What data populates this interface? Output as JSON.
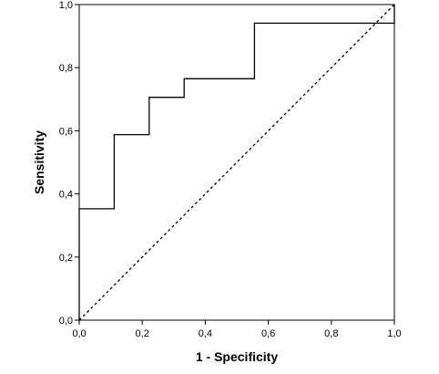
{
  "chart_data": {
    "type": "line",
    "title": "",
    "xlabel": "1 - Specificity",
    "ylabel": "Sensitivity",
    "xlim": [
      0,
      1
    ],
    "ylim": [
      0,
      1
    ],
    "x_ticks": [
      "0,0",
      "0,2",
      "0,4",
      "0,6",
      "0,8",
      "1,0"
    ],
    "y_ticks": [
      "0,0",
      "0,2",
      "0,4",
      "0,6",
      "0,8",
      "1,0"
    ],
    "grid": false,
    "legend": "none",
    "series": [
      {
        "style": "solid-step",
        "color": "#000000",
        "points": [
          [
            0,
            0
          ],
          [
            0,
            0.353
          ],
          [
            0.111,
            0.353
          ],
          [
            0.111,
            0.588
          ],
          [
            0.222,
            0.588
          ],
          [
            0.222,
            0.706
          ],
          [
            0.333,
            0.706
          ],
          [
            0.333,
            0.765
          ],
          [
            0.556,
            0.765
          ],
          [
            0.556,
            0.941
          ],
          [
            1,
            0.941
          ],
          [
            1,
            1
          ]
        ]
      },
      {
        "style": "dashed-reference",
        "color": "#000000",
        "points": [
          [
            0,
            0
          ],
          [
            1,
            1
          ]
        ]
      }
    ]
  }
}
